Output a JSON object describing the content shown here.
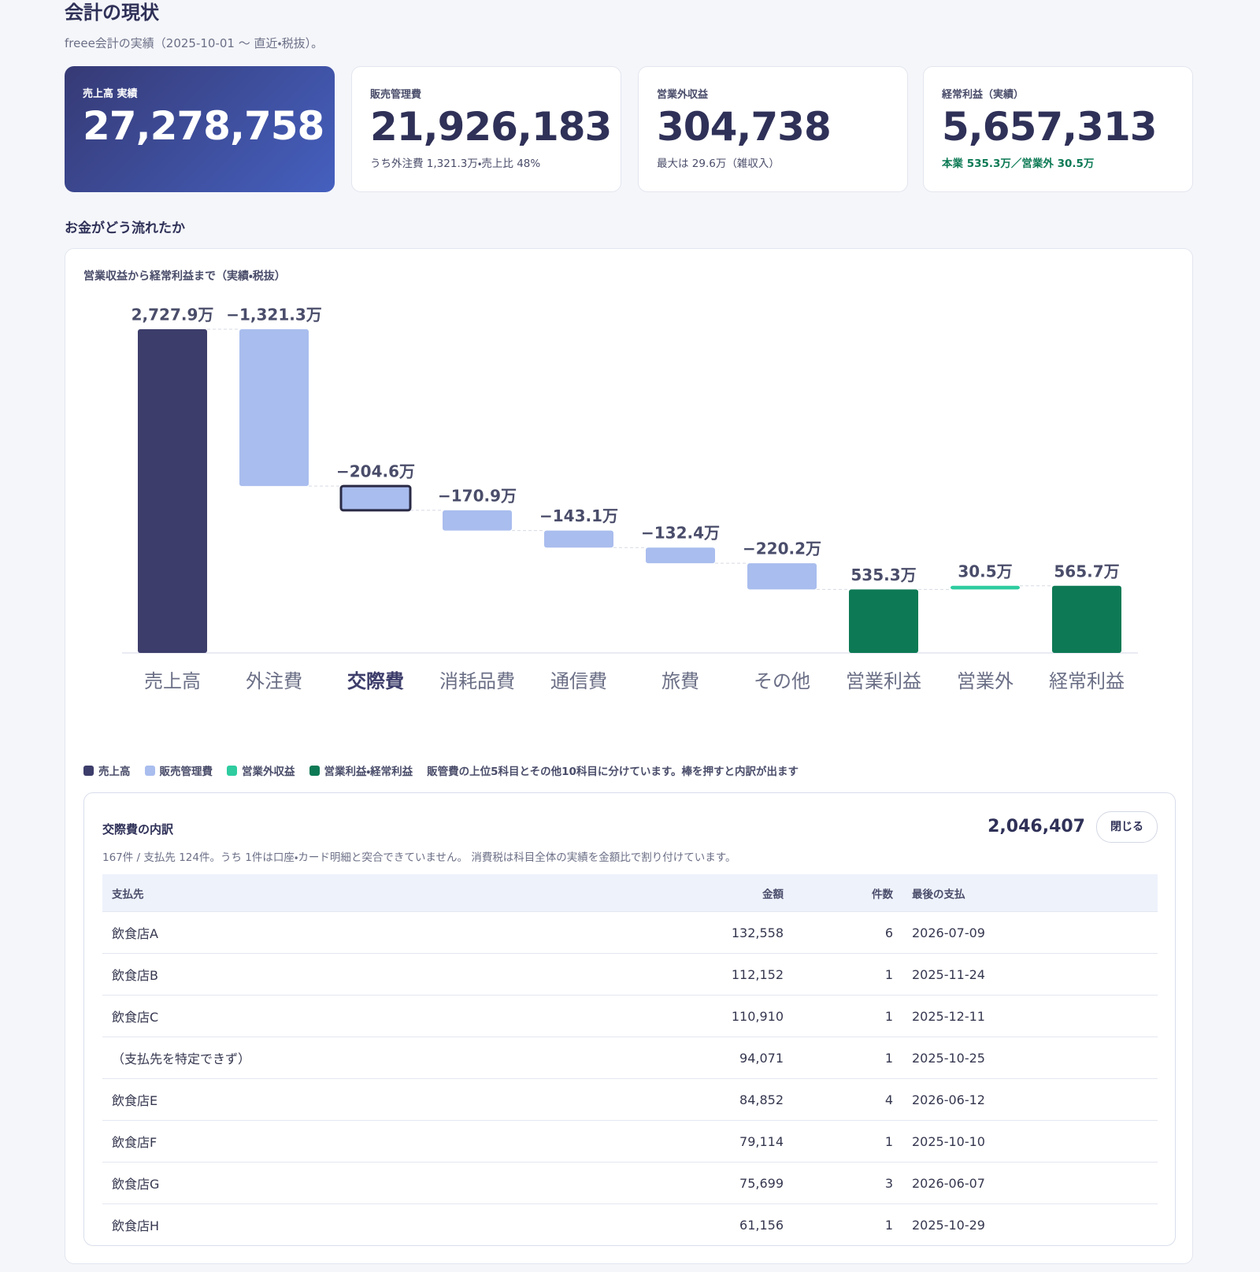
{
  "header": {
    "title": "会計の現状",
    "subtitle": "freee会計の実績（2025-10-01 〜 直近・税抜）。"
  },
  "kpis": [
    {
      "label": "売上高 実績",
      "value": "27,278,758",
      "sub": null
    },
    {
      "label": "販売管理費",
      "value": "21,926,183",
      "sub": "うち外注費 1,321.3万・売上比 48%"
    },
    {
      "label": "営業外収益",
      "value": "304,738",
      "sub": "最大は 29.6万（雑収入）"
    },
    {
      "label": "経常利益（実績）",
      "value": "5,657,313",
      "sub": "本業 535.3万／営業外 30.5万"
    }
  ],
  "section_title": "お金がどう流れたか",
  "chart_data": {
    "type": "waterfall",
    "title": "営業収益から経常利益まで（実績・税抜）",
    "categories": [
      "売上高",
      "外注費",
      "交際費",
      "消耗品費",
      "通信費",
      "旅費",
      "その他",
      "営業利益",
      "営業外",
      "経常利益"
    ],
    "values": [
      2727.9,
      -1321.3,
      -204.6,
      -170.9,
      -143.1,
      -132.4,
      -220.2,
      535.3,
      30.5,
      565.7
    ],
    "value_labels": [
      "2,727.9万",
      "−1,321.3万",
      "−204.6万",
      "−170.9万",
      "−143.1万",
      "−132.4万",
      "−220.2万",
      "535.3万",
      "30.5万",
      "565.7万"
    ],
    "kinds": [
      0,
      1,
      1,
      1,
      1,
      1,
      1,
      3,
      2,
      3
    ],
    "legend": [
      {
        "name": "売上高",
        "color": "#3d3d6b",
        "total": true
      },
      {
        "name": "販売管理費",
        "color": "#a9bdee",
        "total": false
      },
      {
        "name": "営業外収益",
        "color": "#2ecc9f",
        "total": false
      },
      {
        "name": "営業利益・経常利益",
        "color": "#0d7a55",
        "total": true
      }
    ],
    "selected": 2,
    "note": "販管費の上位5科目とその他10科目に分けています。棒を押すと内訳が出ます"
  },
  "detail": {
    "title": "交際費の内訳",
    "total": "2,046,407",
    "close": "閉じる",
    "note": "167件 / 支払先 124件。うち 1件は口座・カード明細と突合できていません。 消費税は科目全体の実績を金額比で割り付けています。",
    "table": {
      "columns": [
        "支払先",
        "金額",
        "件数",
        "最後の支払"
      ],
      "rows": [
        [
          "飲食店A",
          "132,558",
          "6",
          "2026-07-09"
        ],
        [
          "飲食店B",
          "112,152",
          "1",
          "2025-11-24"
        ],
        [
          "飲食店C",
          "110,910",
          "1",
          "2025-12-11"
        ],
        [
          "（支払先を特定できず）",
          "94,071",
          "1",
          "2025-10-25"
        ],
        [
          "飲食店E",
          "84,852",
          "4",
          "2026-06-12"
        ],
        [
          "飲食店F",
          "79,114",
          "1",
          "2025-10-10"
        ],
        [
          "飲食店G",
          "75,699",
          "3",
          "2026-06-07"
        ],
        [
          "飲食店H",
          "61,156",
          "1",
          "2025-10-29"
        ]
      ]
    }
  }
}
